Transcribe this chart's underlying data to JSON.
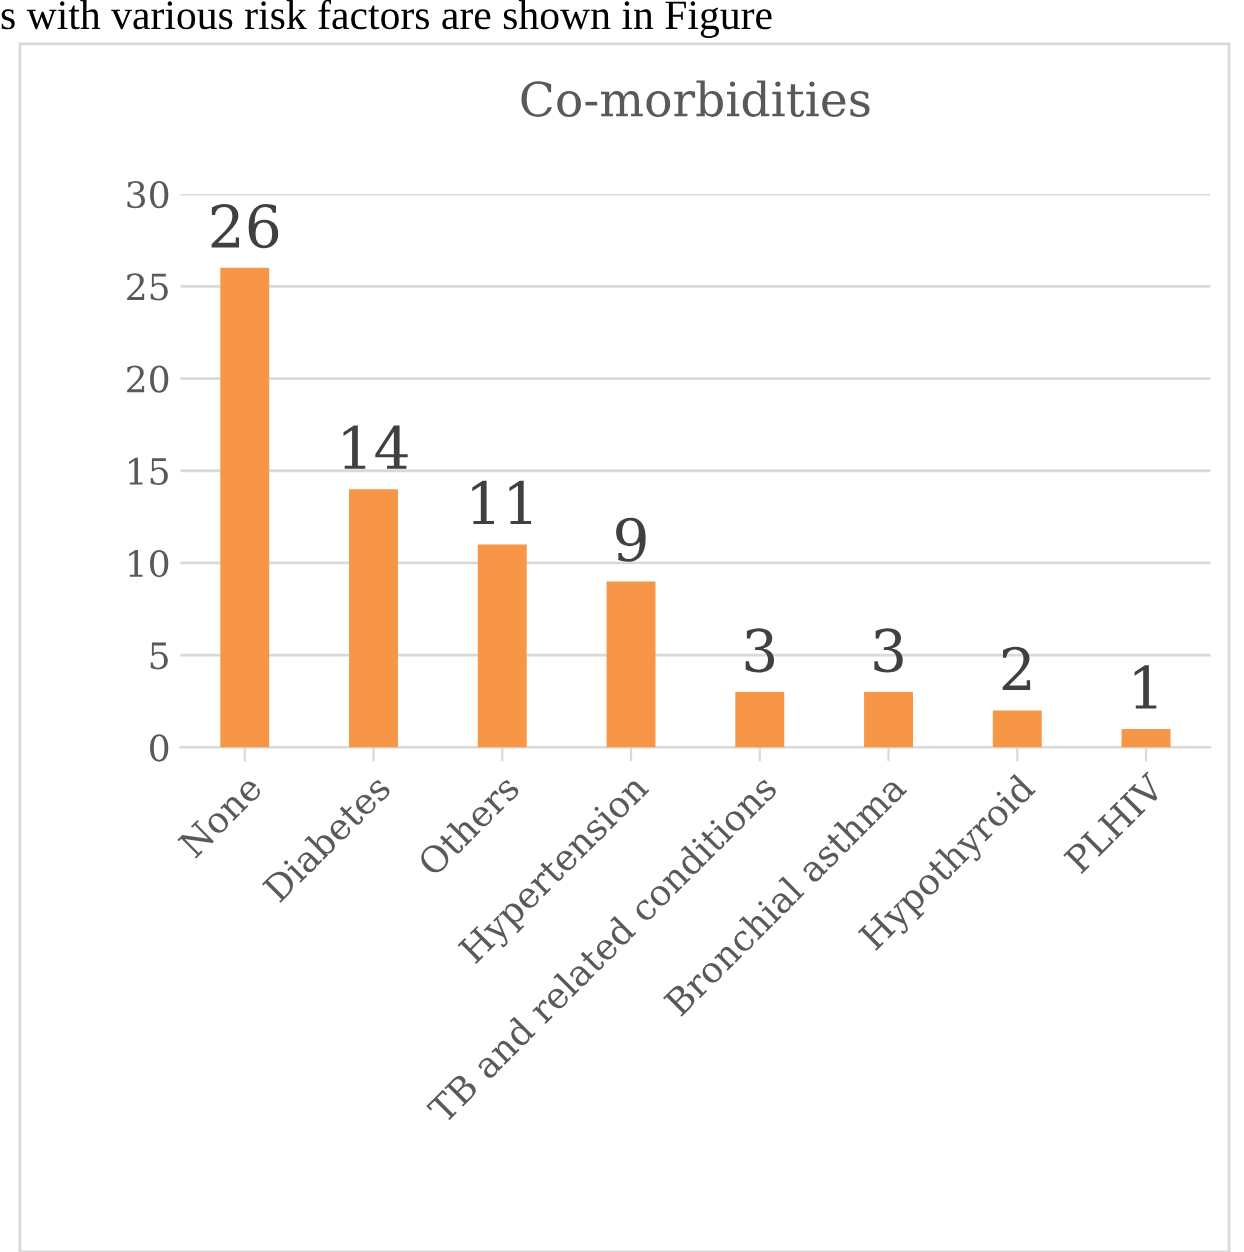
{
  "chart_data": {
    "type": "bar",
    "title": "Co-morbidities",
    "categories": [
      "None",
      "Diabetes",
      "Others",
      "Hypertension",
      "TB and related conditions",
      "Bronchial asthma",
      "Hypothyroid",
      "PLHIV"
    ],
    "values": [
      26,
      14,
      11,
      9,
      3,
      3,
      2,
      1
    ],
    "color": "#f79646",
    "ylim": [
      0,
      30
    ],
    "yticks": [
      0,
      5,
      10,
      15,
      20,
      25,
      30
    ],
    "grid": "y",
    "data_labels": true,
    "annotations": [
      "s with various risk factors are shown in Figure"
    ]
  }
}
